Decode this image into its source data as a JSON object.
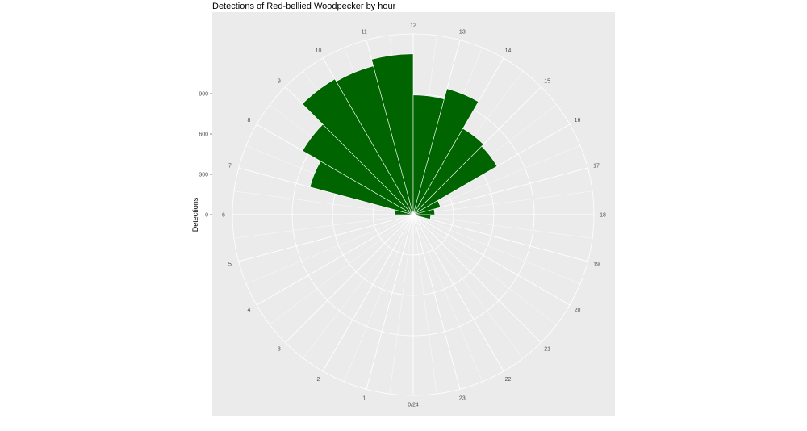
{
  "chart_data": {
    "type": "bar",
    "coord": "polar",
    "title": "Detections of Red-bellied Woodpecker by hour",
    "xlabel": "",
    "ylabel": "Detections",
    "x_tick_labels": [
      "0/24",
      "1",
      "2",
      "3",
      "4",
      "5",
      "6",
      "7",
      "8",
      "9",
      "10",
      "11",
      "12",
      "13",
      "14",
      "15",
      "16",
      "17",
      "18",
      "19",
      "20",
      "21",
      "22",
      "23"
    ],
    "y_ticks": [
      0,
      300,
      600,
      900
    ],
    "y_tick_labels": [
      "0",
      "300",
      "600",
      "900"
    ],
    "ylim": [
      0,
      1340
    ],
    "categories": [
      0,
      1,
      2,
      3,
      4,
      5,
      6,
      7,
      8,
      9,
      10,
      11,
      12,
      13,
      14,
      15,
      16,
      17,
      18,
      19,
      20,
      21,
      22,
      23
    ],
    "values": [
      0,
      0,
      0,
      0,
      0,
      10,
      140,
      795,
      950,
      1165,
      1145,
      1195,
      890,
      970,
      740,
      720,
      210,
      160,
      130,
      0,
      0,
      0,
      0,
      0
    ],
    "bar_color": "#006400",
    "panel_color": "#ebebeb",
    "grid": true,
    "legend": "none"
  }
}
